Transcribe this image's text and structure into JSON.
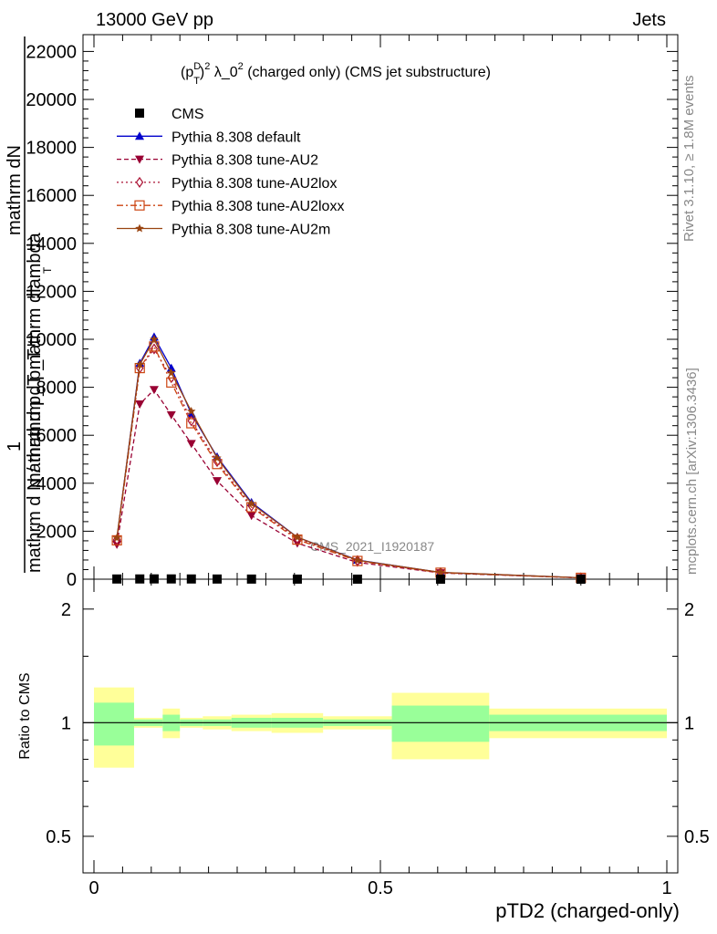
{
  "header": {
    "left": "13000 GeV pp",
    "right": "Jets"
  },
  "side": {
    "rivet": "Rivet 3.1.10, ≥ 1.8M events",
    "mcplots": "mcplots.cern.ch [arXiv:1306.3436]"
  },
  "watermark": "CMS_2021_I1920187",
  "chart_data": [
    {
      "type": "line",
      "title": "(p_T^D)^2 λ_0^2 (charged only) (CMS jet substructure)",
      "title_parts": {
        "a": "(p",
        "sup1": "D",
        "sub1": "T",
        "b": ")",
        "sup2": "2",
        "c": " λ_0",
        "sup3": "2",
        "d": " (charged only) (CMS jet substructure)"
      },
      "ylabel_lines": [
        "mathrm dN",
        "mathrm d p_T mathrm dlambda",
        "1",
        "mathrm d N / mathrm d p_T"
      ],
      "ylabel_sub": "T",
      "xlim": [
        0,
        1
      ],
      "ylim": [
        0,
        22700
      ],
      "yticks": [
        0,
        2000,
        4000,
        6000,
        8000,
        10000,
        12000,
        14000,
        16000,
        18000,
        20000,
        22000
      ],
      "ytick_labels": [
        "0",
        "2000",
        "4000",
        "6000",
        "8000",
        "10000",
        "12000",
        "14000",
        "16000",
        "18000",
        "20000",
        "22000"
      ],
      "legend_position": "top-left",
      "cms": {
        "name": "CMS",
        "color": "#000000",
        "x": [
          0.04,
          0.08,
          0.105,
          0.135,
          0.17,
          0.215,
          0.275,
          0.355,
          0.46,
          0.605,
          0.85
        ],
        "y": [
          8,
          10,
          12,
          11,
          9,
          7,
          5,
          3,
          2,
          1,
          0.4
        ],
        "bins": [
          [
            0,
            0.07
          ],
          [
            0.07,
            0.09
          ],
          [
            0.09,
            0.12
          ],
          [
            0.12,
            0.15
          ],
          [
            0.15,
            0.19
          ],
          [
            0.19,
            0.24
          ],
          [
            0.24,
            0.31
          ],
          [
            0.31,
            0.4
          ],
          [
            0.4,
            0.52
          ],
          [
            0.52,
            0.69
          ],
          [
            0.69,
            1.0
          ]
        ],
        "band_yellow": [
          0.24,
          0.03,
          0.03,
          0.09,
          0.03,
          0.04,
          0.05,
          0.06,
          0.04,
          0.2,
          0.09
        ],
        "band_green": [
          0.13,
          0.02,
          0.02,
          0.05,
          0.02,
          0.02,
          0.03,
          0.03,
          0.02,
          0.11,
          0.05
        ]
      },
      "series": [
        {
          "name": "Pythia 8.308 default",
          "color": "#0000cc",
          "dash": "",
          "marker": "triangle-up",
          "y": [
            1700,
            9000,
            10100,
            8800,
            6900,
            5100,
            3200,
            1750,
            800,
            280,
            60
          ]
        },
        {
          "name": "Pythia 8.308 tune-AU2",
          "color": "#990033",
          "dash": "5,3",
          "marker": "triangle-down",
          "y": [
            1450,
            7300,
            7900,
            6850,
            5650,
            4100,
            2650,
            1500,
            700,
            260,
            55
          ]
        },
        {
          "name": "Pythia 8.308 tune-AU2lox",
          "color": "#aa1133",
          "dash": "2,3",
          "marker": "diamond-open",
          "y": [
            1650,
            8800,
            9600,
            8400,
            6600,
            4900,
            3050,
            1700,
            780,
            275,
            58
          ]
        },
        {
          "name": "Pythia 8.308 tune-AU2loxx",
          "color": "#cc4411",
          "dash": "7,3,2,3",
          "marker": "square-open",
          "y": [
            1620,
            8800,
            9700,
            8200,
            6500,
            4800,
            3000,
            1650,
            760,
            270,
            58
          ]
        },
        {
          "name": "Pythia 8.308 tune-AU2m",
          "color": "#994411",
          "dash": "",
          "marker": "star",
          "y": [
            1720,
            8950,
            10000,
            8600,
            7000,
            5050,
            3150,
            1750,
            790,
            285,
            62
          ]
        }
      ]
    },
    {
      "type": "line",
      "ylabel": "Ratio to CMS",
      "xlabel": "pTD2 (charged-only)",
      "ylim": [
        0.4,
        2.4
      ],
      "log_y": true,
      "yticks": [
        0.5,
        1,
        2
      ],
      "ytick_labels": [
        "0.5",
        "1",
        "2"
      ],
      "xticks": [
        0,
        0.5,
        1
      ],
      "xtick_labels": [
        "0",
        "0.5",
        "1"
      ],
      "reference": 1
    }
  ]
}
